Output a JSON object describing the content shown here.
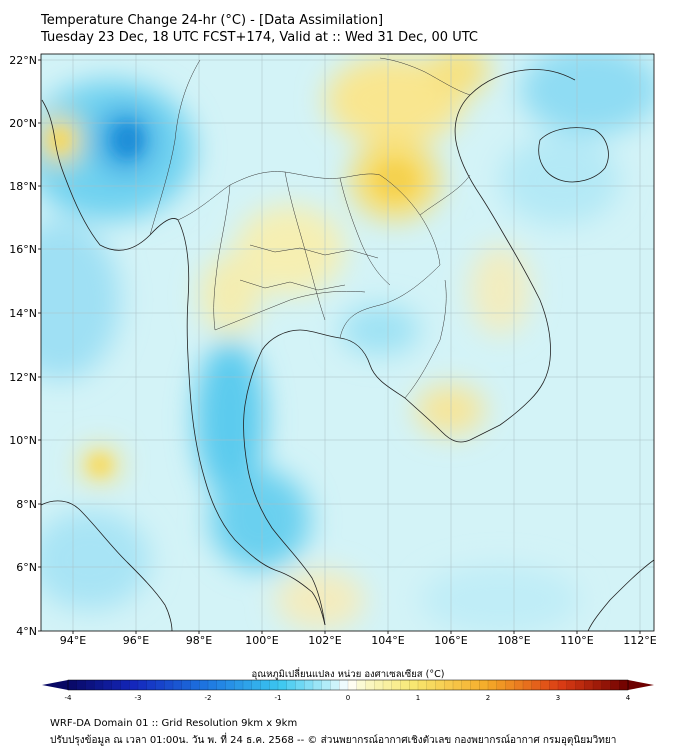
{
  "title_line1": "Temperature Change 24-hr (°C) - [Data Assimilation]",
  "title_line2": "Tuesday 23 Dec, 18 UTC FCST+174, Valid at :: Wed 31 Dec, 00 UTC",
  "lat_labels": [
    "22°N",
    "20°N",
    "18°N",
    "16°N",
    "14°N",
    "12°N",
    "10°N",
    "8°N",
    "6°N",
    "4°N"
  ],
  "lon_labels": [
    "94°E",
    "96°E",
    "98°E",
    "100°E",
    "102°E",
    "104°E",
    "106°E",
    "108°E",
    "110°E",
    "112°E"
  ],
  "colorbar": {
    "title": "อุณหภูมิเปลี่ยนแปลง หน่วย องศาเซลเซียส (°C)",
    "ticks": [
      "-4",
      "-3",
      "-2",
      "-1",
      "0",
      "1",
      "2",
      "3",
      "4"
    ],
    "range": [
      -4,
      4
    ]
  },
  "footer_line1": "WRF-DA Domain 01 :: Grid Resolution 9km x 9km",
  "footer_line2": "ปรับปรุงข้อมูล ณ เวลา 01:00น. วัน พ. ที่ 24 ธ.ค. 2568 -- © ส่วนพยากรณ์อากาศเชิงตัวเลข กองพยากรณ์อากาศ กรมอุตุนิยมวิทยา",
  "colors": {
    "ocean_base": "#c9f2f6",
    "warm": "#f9e27a",
    "cool": "#49c8ea",
    "grid": "#9fb7bd"
  }
}
